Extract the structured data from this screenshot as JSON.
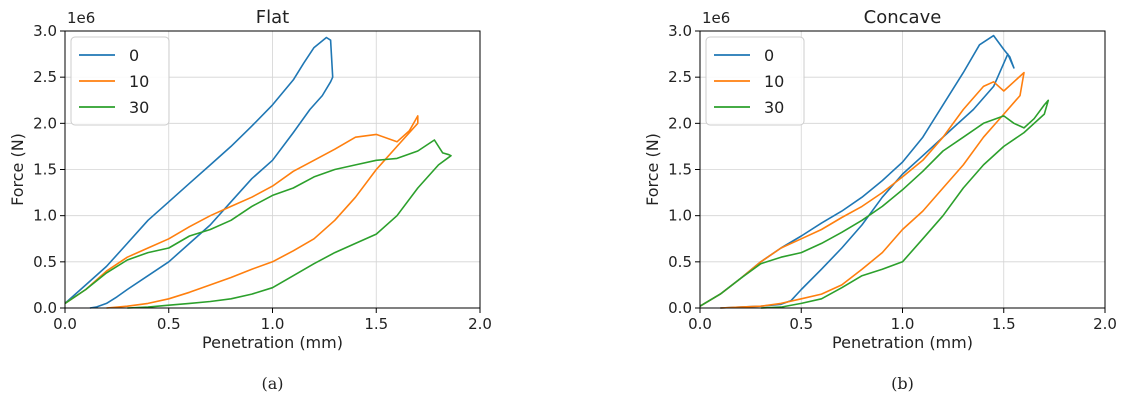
{
  "chart_data": [
    {
      "type": "line",
      "title": "Flat",
      "xlabel": "Penetration (mm)",
      "ylabel": "Force (N)",
      "y_scale_label": "1e6",
      "caption": "(a)",
      "xlim": [
        0.0,
        2.0
      ],
      "ylim": [
        0.0,
        3.0
      ],
      "xticks": [
        "0.0",
        "0.5",
        "1.0",
        "1.5",
        "2.0"
      ],
      "yticks": [
        "0.0",
        "0.5",
        "1.0",
        "1.5",
        "2.0",
        "2.5",
        "3.0"
      ],
      "grid": true,
      "legend_position": "top-left",
      "series": [
        {
          "name": "0",
          "color": "#1f77b4",
          "x": [
            0.0,
            0.1,
            0.2,
            0.3,
            0.4,
            0.5,
            0.6,
            0.7,
            0.8,
            0.9,
            1.0,
            1.1,
            1.15,
            1.2,
            1.26,
            1.28,
            1.29,
            1.28,
            1.24,
            1.18,
            1.1,
            1.0,
            0.9,
            0.8,
            0.7,
            0.6,
            0.5,
            0.4,
            0.3,
            0.25,
            0.2,
            0.15,
            0.12
          ],
          "y": [
            0.05,
            0.25,
            0.45,
            0.7,
            0.95,
            1.15,
            1.35,
            1.55,
            1.75,
            1.97,
            2.2,
            2.47,
            2.65,
            2.82,
            2.93,
            2.9,
            2.5,
            2.45,
            2.3,
            2.15,
            1.9,
            1.6,
            1.4,
            1.15,
            0.9,
            0.7,
            0.5,
            0.35,
            0.2,
            0.12,
            0.05,
            0.01,
            0.0
          ]
        },
        {
          "name": "10",
          "color": "#ff7f0e",
          "x": [
            0.0,
            0.1,
            0.2,
            0.3,
            0.4,
            0.5,
            0.6,
            0.7,
            0.8,
            0.9,
            1.0,
            1.1,
            1.2,
            1.3,
            1.4,
            1.5,
            1.6,
            1.66,
            1.7,
            1.7,
            1.6,
            1.5,
            1.4,
            1.3,
            1.2,
            1.1,
            1.0,
            0.9,
            0.8,
            0.7,
            0.6,
            0.5,
            0.4,
            0.3,
            0.2
          ],
          "y": [
            0.05,
            0.2,
            0.4,
            0.55,
            0.65,
            0.75,
            0.88,
            1.0,
            1.1,
            1.2,
            1.32,
            1.48,
            1.6,
            1.72,
            1.85,
            1.88,
            1.8,
            1.92,
            2.08,
            2.0,
            1.75,
            1.5,
            1.2,
            0.95,
            0.75,
            0.62,
            0.5,
            0.42,
            0.33,
            0.25,
            0.17,
            0.1,
            0.05,
            0.02,
            0.0
          ]
        },
        {
          "name": "30",
          "color": "#2ca02c",
          "x": [
            0.0,
            0.1,
            0.2,
            0.3,
            0.4,
            0.5,
            0.6,
            0.7,
            0.8,
            0.9,
            1.0,
            1.1,
            1.2,
            1.3,
            1.4,
            1.5,
            1.6,
            1.7,
            1.78,
            1.82,
            1.85,
            1.86,
            1.8,
            1.7,
            1.6,
            1.5,
            1.4,
            1.3,
            1.2,
            1.1,
            1.0,
            0.9,
            0.8,
            0.7,
            0.6,
            0.5,
            0.4,
            0.3
          ],
          "y": [
            0.05,
            0.2,
            0.38,
            0.52,
            0.6,
            0.65,
            0.78,
            0.85,
            0.95,
            1.1,
            1.22,
            1.3,
            1.42,
            1.5,
            1.55,
            1.6,
            1.62,
            1.7,
            1.82,
            1.68,
            1.66,
            1.65,
            1.55,
            1.3,
            1.0,
            0.8,
            0.7,
            0.6,
            0.48,
            0.35,
            0.22,
            0.15,
            0.1,
            0.07,
            0.05,
            0.03,
            0.01,
            0.0
          ]
        }
      ]
    },
    {
      "type": "line",
      "title": "Concave",
      "xlabel": "Penetration (mm)",
      "ylabel": "Force (N)",
      "y_scale_label": "1e6",
      "caption": "(b)",
      "xlim": [
        0.0,
        2.0
      ],
      "ylim": [
        0.0,
        3.0
      ],
      "xticks": [
        "0.0",
        "0.5",
        "1.0",
        "1.5",
        "2.0"
      ],
      "yticks": [
        "0.0",
        "0.5",
        "1.0",
        "1.5",
        "2.0",
        "2.5",
        "3.0"
      ],
      "grid": true,
      "legend_position": "top-left",
      "series": [
        {
          "name": "0",
          "color": "#1f77b4",
          "x": [
            0.0,
            0.1,
            0.2,
            0.3,
            0.4,
            0.5,
            0.6,
            0.7,
            0.8,
            0.9,
            1.0,
            1.1,
            1.2,
            1.3,
            1.38,
            1.45,
            1.5,
            1.53,
            1.55,
            1.52,
            1.45,
            1.35,
            1.25,
            1.1,
            1.0,
            0.9,
            0.8,
            0.7,
            0.6,
            0.5,
            0.45,
            0.4,
            0.3,
            0.2,
            0.1
          ],
          "y": [
            0.02,
            0.15,
            0.32,
            0.5,
            0.65,
            0.78,
            0.92,
            1.05,
            1.2,
            1.38,
            1.58,
            1.85,
            2.2,
            2.55,
            2.85,
            2.95,
            2.8,
            2.72,
            2.6,
            2.75,
            2.4,
            2.15,
            1.95,
            1.65,
            1.45,
            1.2,
            0.9,
            0.65,
            0.42,
            0.2,
            0.08,
            0.04,
            0.02,
            0.01,
            0.0
          ]
        },
        {
          "name": "10",
          "color": "#ff7f0e",
          "x": [
            0.0,
            0.1,
            0.2,
            0.3,
            0.4,
            0.5,
            0.6,
            0.7,
            0.8,
            0.9,
            1.0,
            1.1,
            1.2,
            1.3,
            1.4,
            1.45,
            1.5,
            1.55,
            1.6,
            1.58,
            1.5,
            1.4,
            1.3,
            1.2,
            1.1,
            1.0,
            0.9,
            0.8,
            0.7,
            0.6,
            0.5,
            0.4,
            0.3,
            0.2,
            0.1
          ],
          "y": [
            0.02,
            0.15,
            0.32,
            0.5,
            0.65,
            0.75,
            0.85,
            0.98,
            1.1,
            1.25,
            1.42,
            1.6,
            1.85,
            2.15,
            2.4,
            2.45,
            2.35,
            2.45,
            2.55,
            2.3,
            2.1,
            1.85,
            1.55,
            1.3,
            1.05,
            0.85,
            0.6,
            0.42,
            0.25,
            0.15,
            0.1,
            0.05,
            0.02,
            0.01,
            0.0
          ]
        },
        {
          "name": "30",
          "color": "#2ca02c",
          "x": [
            0.0,
            0.1,
            0.2,
            0.3,
            0.4,
            0.5,
            0.6,
            0.7,
            0.8,
            0.9,
            1.0,
            1.1,
            1.2,
            1.3,
            1.4,
            1.5,
            1.55,
            1.6,
            1.65,
            1.7,
            1.72,
            1.7,
            1.6,
            1.5,
            1.4,
            1.3,
            1.2,
            1.1,
            1.0,
            0.9,
            0.8,
            0.7,
            0.6,
            0.5,
            0.4,
            0.3
          ],
          "y": [
            0.02,
            0.15,
            0.32,
            0.48,
            0.55,
            0.6,
            0.7,
            0.82,
            0.95,
            1.1,
            1.28,
            1.48,
            1.7,
            1.85,
            2.0,
            2.08,
            2.0,
            1.95,
            2.05,
            2.2,
            2.25,
            2.1,
            1.9,
            1.75,
            1.55,
            1.3,
            1.0,
            0.75,
            0.5,
            0.42,
            0.35,
            0.22,
            0.1,
            0.05,
            0.01,
            0.0
          ]
        }
      ]
    }
  ]
}
